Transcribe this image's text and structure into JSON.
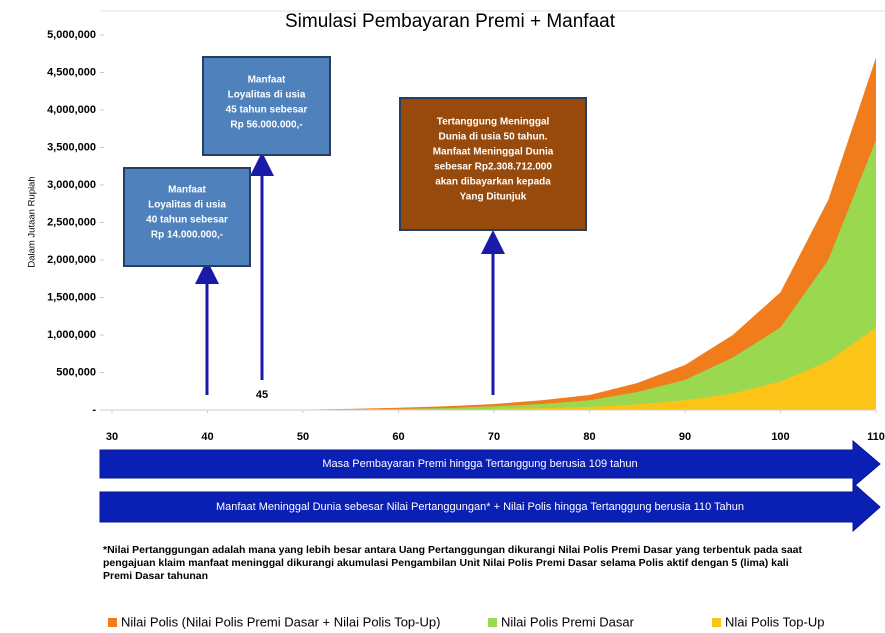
{
  "chart_data": {
    "type": "area",
    "title": "Simulasi Pembayaran Premi + Manfaat",
    "y_label": "Dalam Jutaan Rupiah",
    "x": [
      45,
      50,
      55,
      60,
      65,
      70,
      75,
      80,
      85,
      90,
      95,
      100,
      105,
      110
    ],
    "series": [
      {
        "name": "Nilai Polis (Nilai Polis Premi Dasar + Nilai Polis Top-Up)",
        "color": "#f07c1c",
        "values": [
          0,
          5000,
          15000,
          30000,
          50000,
          80000,
          130000,
          200000,
          360000,
          600000,
          1000000,
          1570000,
          2800000,
          4700000
        ]
      },
      {
        "name": "Nilai Polis Premi Dasar",
        "color": "#9ad84f",
        "values": [
          0,
          3000,
          8000,
          15000,
          25000,
          50000,
          80000,
          130000,
          240000,
          400000,
          700000,
          1100000,
          2000000,
          3600000
        ]
      },
      {
        "name": "Nlai Polis Top-Up",
        "color": "#fcc419",
        "values": [
          0,
          1000,
          3000,
          5000,
          9000,
          15000,
          25000,
          40000,
          75000,
          130000,
          220000,
          380000,
          650000,
          1100000
        ]
      }
    ],
    "xlim": [
      30,
      110
    ],
    "xticks": [
      30,
      40,
      50,
      60,
      70,
      80,
      90,
      100,
      110
    ],
    "ylim": [
      0,
      5000000
    ],
    "yticks": [
      {
        "value": 0,
        "label": "-"
      },
      {
        "value": 500000,
        "label": "500,000"
      },
      {
        "value": 1000000,
        "label": "1,000,000"
      },
      {
        "value": 1500000,
        "label": "1,500,000"
      },
      {
        "value": 2000000,
        "label": "2,000,000"
      },
      {
        "value": 2500000,
        "label": "2,500,000"
      },
      {
        "value": 3000000,
        "label": "3,000,000"
      },
      {
        "value": 3500000,
        "label": "3,500,000"
      },
      {
        "value": 4000000,
        "label": "4,000,000"
      },
      {
        "value": 4500000,
        "label": "4,500,000"
      },
      {
        "value": 5000000,
        "label": "5,000,000"
      }
    ],
    "grid": false,
    "annotations": [
      {
        "lines": [
          "Manfaat",
          "Loyalitas di usia",
          "40 tahun sebesar",
          "Rp 14.000.000,-"
        ]
      },
      {
        "lines": [
          "Manfaat",
          "Loyalitas di usia",
          "45 tahun sebesar",
          "Rp 56.000.000,-"
        ]
      },
      {
        "lines": [
          "Tertanggung Meninggal",
          "Dunia di usia 50 tahun.",
          "Manfaat Meninggal Dunia",
          "sebesar Rp2.308.712.000",
          "akan dibayarkan kepada",
          "Yang Ditunjuk"
        ]
      }
    ],
    "age_label": "45",
    "bands": [
      "Masa Pembayaran Premi hingga Tertanggung berusia 109 tahun",
      "Manfaat Meninggal Dunia sebesar Nilai Pertanggungan* + Nilai Polis hingga Tertanggung berusia 110 Tahun"
    ],
    "footnote": [
      "*Nilai Pertanggungan adalah mana yang lebih besar antara Uang Pertanggungan dikurangi Nilai Polis Premi Dasar yang terbentuk pada saat",
      "pengajuan klaim manfaat meninggal dikurangi akumulasi Pengambilan Unit Nilai Polis Premi Dasar selama Polis aktif dengan 5 (lima) kali",
      "Premi Dasar tahunan"
    ]
  }
}
